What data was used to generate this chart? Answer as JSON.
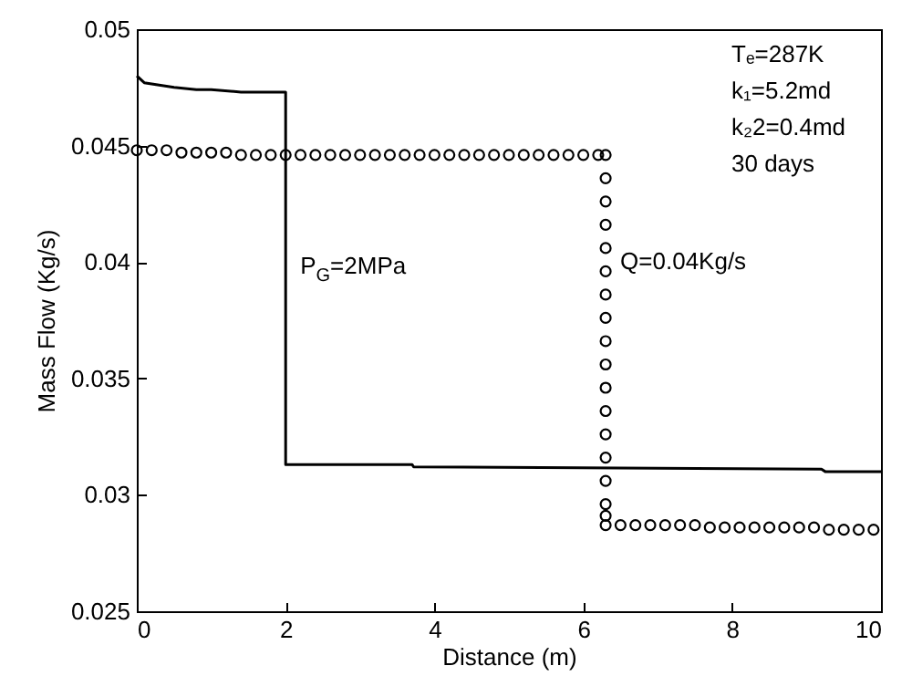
{
  "chart_data": {
    "type": "line",
    "xlabel": "Distance (m)",
    "ylabel": "Mass Flow (Kg/s)",
    "xlim": [
      0,
      10
    ],
    "ylim": [
      0.025,
      0.05
    ],
    "xticks": [
      0,
      2,
      4,
      6,
      8,
      10
    ],
    "yticks": [
      0.025,
      0.03,
      0.035,
      0.04,
      0.045,
      0.05
    ],
    "grid": false,
    "series": [
      {
        "color": "#000000",
        "line_style": "solid",
        "marker": "none",
        "x": [
          0,
          0.1,
          0.3,
          0.5,
          0.8,
          1.0,
          1.4,
          2.0,
          2.0,
          3.7,
          3.72,
          9.2,
          9.25,
          10
        ],
        "values": [
          0.048,
          0.0477,
          0.0476,
          0.0475,
          0.0474,
          0.0474,
          0.0473,
          0.0473,
          0.0313,
          0.0313,
          0.0312,
          0.0311,
          0.031,
          0.031
        ]
      },
      {
        "type": "scatter",
        "color": "#000000",
        "marker": "circle",
        "x": [
          0,
          0.2,
          0.4,
          0.6,
          0.8,
          1.0,
          1.2,
          1.4,
          1.6,
          1.8,
          2.0,
          2.2,
          2.4,
          2.6,
          2.8,
          3.0,
          3.2,
          3.4,
          3.6,
          3.8,
          4.0,
          4.2,
          4.4,
          4.6,
          4.8,
          5.0,
          5.2,
          5.4,
          5.6,
          5.8,
          6.0,
          6.2,
          6.3,
          6.3,
          6.3,
          6.3,
          6.3,
          6.3,
          6.3,
          6.3,
          6.3,
          6.3,
          6.3,
          6.3,
          6.3,
          6.3,
          6.3,
          6.3,
          6.3,
          6.3,
          6.5,
          6.7,
          6.9,
          7.1,
          7.3,
          7.5,
          7.7,
          7.9,
          8.1,
          8.3,
          8.5,
          8.7,
          8.9,
          9.1,
          9.3,
          9.5,
          9.7,
          9.9
        ],
        "values": [
          0.0448,
          0.0448,
          0.0448,
          0.0447,
          0.0447,
          0.0447,
          0.0447,
          0.0446,
          0.0446,
          0.0446,
          0.0446,
          0.0446,
          0.0446,
          0.0446,
          0.0446,
          0.0446,
          0.0446,
          0.0446,
          0.0446,
          0.0446,
          0.0446,
          0.0446,
          0.0446,
          0.0446,
          0.0446,
          0.0446,
          0.0446,
          0.0446,
          0.0446,
          0.0446,
          0.0446,
          0.0446,
          0.0446,
          0.0436,
          0.0426,
          0.0416,
          0.0406,
          0.0396,
          0.0386,
          0.0376,
          0.0366,
          0.0356,
          0.0346,
          0.0336,
          0.0326,
          0.0316,
          0.0306,
          0.0296,
          0.0291,
          0.0287,
          0.0287,
          0.0287,
          0.0287,
          0.0287,
          0.0287,
          0.0287,
          0.0286,
          0.0286,
          0.0286,
          0.0286,
          0.0286,
          0.0286,
          0.0286,
          0.0286,
          0.0285,
          0.0285,
          0.0285,
          0.0285
        ]
      }
    ],
    "annotations": [
      {
        "text": "P$_{G}$=2MPa",
        "x": 2,
        "y": 0.0398
      },
      {
        "text": "Q=0.04Kg/s",
        "x": 6.3,
        "y": 0.04
      },
      "Tₑ=287K",
      "k₁=5.2md",
      "k₂2=0.4md",
      "30 days"
    ]
  }
}
